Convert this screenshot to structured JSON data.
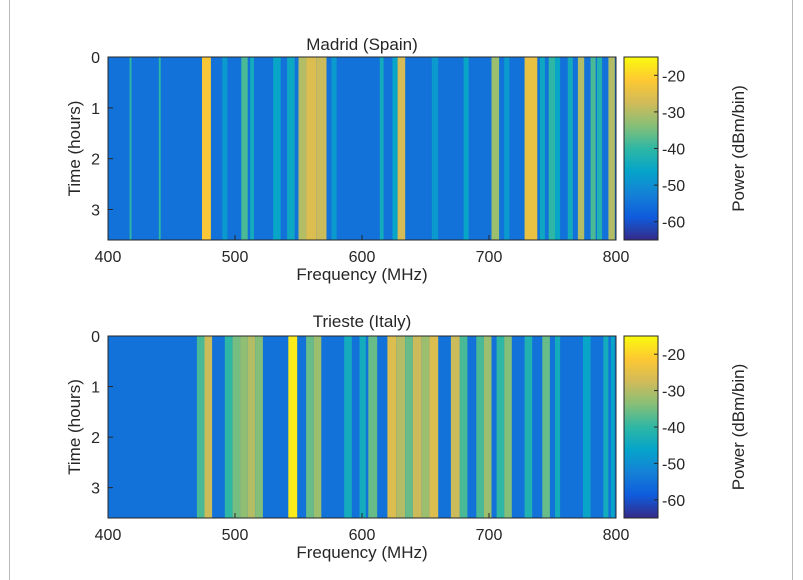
{
  "chart_data": [
    {
      "type": "heatmap",
      "title": "Madrid (Spain)",
      "xlabel": "Frequency (MHz)",
      "ylabel": "Time (hours)",
      "xlim": [
        400,
        800
      ],
      "ylim": [
        0,
        3.6
      ],
      "y_reversed": true,
      "xticks": [
        "400",
        "500",
        "600",
        "700",
        "800"
      ],
      "yticks": [
        "0",
        "1",
        "2",
        "3"
      ],
      "colorbar": {
        "label": "Power (dBm/bin)",
        "range": [
          -65,
          -15
        ],
        "ticks": [
          "-20",
          "-30",
          "-40",
          "-50",
          "-60"
        ]
      },
      "background_power": -55,
      "bands": [
        {
          "x0": 417,
          "x1": 418.5,
          "power": -40
        },
        {
          "x0": 440,
          "x1": 441.5,
          "power": -40
        },
        {
          "x0": 474,
          "x1": 481,
          "power": -22
        },
        {
          "x0": 490,
          "x1": 494,
          "power": -48
        },
        {
          "x0": 505,
          "x1": 510,
          "power": -38
        },
        {
          "x0": 512,
          "x1": 515,
          "power": -44
        },
        {
          "x0": 530,
          "x1": 536,
          "power": -46
        },
        {
          "x0": 541,
          "x1": 547,
          "power": -45
        },
        {
          "x0": 550,
          "x1": 556,
          "power": -30
        },
        {
          "x0": 556,
          "x1": 564,
          "power": -26
        },
        {
          "x0": 564,
          "x1": 572,
          "power": -28
        },
        {
          "x0": 576,
          "x1": 580,
          "power": -48
        },
        {
          "x0": 614,
          "x1": 617,
          "power": -44
        },
        {
          "x0": 624,
          "x1": 628,
          "power": -46
        },
        {
          "x0": 628,
          "x1": 634,
          "power": -27
        },
        {
          "x0": 655,
          "x1": 660,
          "power": -48
        },
        {
          "x0": 680,
          "x1": 684,
          "power": -46
        },
        {
          "x0": 702,
          "x1": 708,
          "power": -32
        },
        {
          "x0": 712,
          "x1": 716,
          "power": -48
        },
        {
          "x0": 728,
          "x1": 738,
          "power": -24
        },
        {
          "x0": 740,
          "x1": 744,
          "power": -45
        },
        {
          "x0": 747,
          "x1": 752,
          "power": -40
        },
        {
          "x0": 752,
          "x1": 756,
          "power": -46
        },
        {
          "x0": 762,
          "x1": 766,
          "power": -44
        },
        {
          "x0": 770,
          "x1": 775,
          "power": -30
        },
        {
          "x0": 780,
          "x1": 784,
          "power": -38
        },
        {
          "x0": 785,
          "x1": 789,
          "power": -42
        },
        {
          "x0": 794,
          "x1": 799,
          "power": -30
        }
      ]
    },
    {
      "type": "heatmap",
      "title": "Trieste (Italy)",
      "xlabel": "Frequency (MHz)",
      "ylabel": "Time (hours)",
      "xlim": [
        400,
        800
      ],
      "ylim": [
        0,
        3.6
      ],
      "y_reversed": true,
      "xticks": [
        "400",
        "500",
        "600",
        "700",
        "800"
      ],
      "yticks": [
        "0",
        "1",
        "2",
        "3"
      ],
      "colorbar": {
        "label": "Power (dBm/bin)",
        "range": [
          -65,
          -15
        ],
        "ticks": [
          "-20",
          "-30",
          "-40",
          "-50",
          "-60"
        ]
      },
      "background_power": -55,
      "bands": [
        {
          "x0": 470,
          "x1": 476,
          "power": -38
        },
        {
          "x0": 476,
          "x1": 482,
          "power": -28
        },
        {
          "x0": 492,
          "x1": 498,
          "power": -40
        },
        {
          "x0": 498,
          "x1": 504,
          "power": -35
        },
        {
          "x0": 504,
          "x1": 510,
          "power": -33
        },
        {
          "x0": 510,
          "x1": 516,
          "power": -30
        },
        {
          "x0": 516,
          "x1": 522,
          "power": -34
        },
        {
          "x0": 542,
          "x1": 549,
          "power": -17
        },
        {
          "x0": 556,
          "x1": 562,
          "power": -36
        },
        {
          "x0": 562,
          "x1": 568,
          "power": -32
        },
        {
          "x0": 586,
          "x1": 592,
          "power": -44
        },
        {
          "x0": 598,
          "x1": 603,
          "power": -44
        },
        {
          "x0": 605,
          "x1": 612,
          "power": -36
        },
        {
          "x0": 620,
          "x1": 627,
          "power": -26
        },
        {
          "x0": 627,
          "x1": 634,
          "power": -30
        },
        {
          "x0": 634,
          "x1": 640,
          "power": -36
        },
        {
          "x0": 640,
          "x1": 647,
          "power": -28
        },
        {
          "x0": 647,
          "x1": 653,
          "power": -32
        },
        {
          "x0": 653,
          "x1": 660,
          "power": -26
        },
        {
          "x0": 670,
          "x1": 677,
          "power": -28
        },
        {
          "x0": 677,
          "x1": 683,
          "power": -38
        },
        {
          "x0": 690,
          "x1": 696,
          "power": -38
        },
        {
          "x0": 696,
          "x1": 702,
          "power": -32
        },
        {
          "x0": 706,
          "x1": 712,
          "power": -40
        },
        {
          "x0": 712,
          "x1": 718,
          "power": -34
        },
        {
          "x0": 728,
          "x1": 734,
          "power": -42
        },
        {
          "x0": 742,
          "x1": 748,
          "power": -36
        },
        {
          "x0": 752,
          "x1": 756,
          "power": -44
        },
        {
          "x0": 774,
          "x1": 780,
          "power": -46
        },
        {
          "x0": 790,
          "x1": 794,
          "power": -44
        },
        {
          "x0": 796,
          "x1": 799,
          "power": -46
        }
      ]
    }
  ]
}
